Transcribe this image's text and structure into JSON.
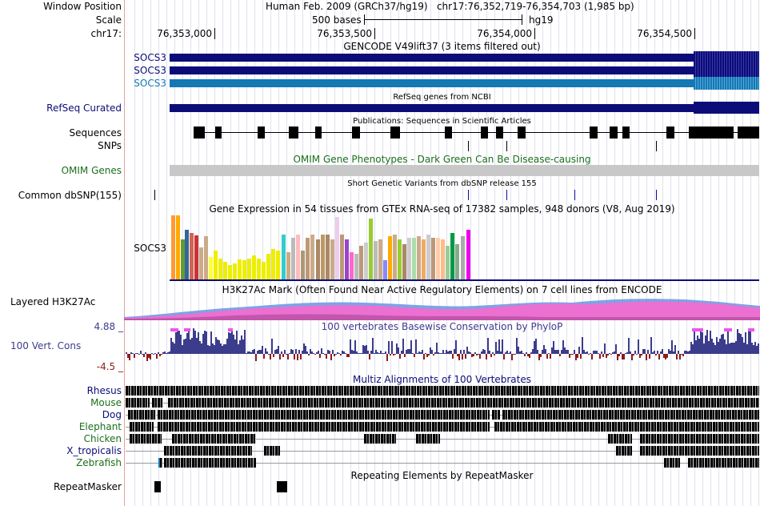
{
  "header": {
    "window_position_label": "Window Position",
    "scale_label": "Scale",
    "chrom_label": "chr17:",
    "position_text": "Human Feb. 2009 (GRCh37/hg19)   chr17:76,352,719-76,354,703 (1,985 bp)",
    "scale_text": "500 bases",
    "assembly": "hg19",
    "ruler_ticks": [
      "76,353,000",
      "76,353,500",
      "76,354,000",
      "76,354,500"
    ]
  },
  "tracks": {
    "gencode": {
      "title": "GENCODE V49lift37 (3 items filtered out)",
      "items": [
        "SOCS3",
        "SOCS3",
        "SOCS3"
      ],
      "colors": [
        "#0c0c78",
        "#0c0c78",
        "#1478b4"
      ]
    },
    "refseq": {
      "label": "RefSeq Curated",
      "title": "RefSeq genes from NCBI",
      "color": "#0c0c78"
    },
    "publications": {
      "label": "Sequences",
      "title": "Publications: Sequences in Scientific Articles"
    },
    "snps": {
      "label": "SNPs"
    },
    "omim": {
      "label": "OMIM Genes",
      "title": "OMIM Gene Phenotypes - Dark Green Can Be Disease-causing",
      "color": "#1c6e1c"
    },
    "dbsnp": {
      "label": "Common dbSNP(155)",
      "title": "Short Genetic Variants from dbSNP release 155"
    },
    "gtex": {
      "title": "Gene Expression in 54 tissues from GTEx RNA-seq of 17382 samples, 948 donors (V8, Aug 2019)",
      "gene": "SOCS3"
    },
    "h3k27ac": {
      "label": "Layered H3K27Ac",
      "title": "H3K27Ac Mark (Often Found Near Active Regulatory Elements) on 7 cell lines from ENCODE"
    },
    "conservation": {
      "label": "100 Vert. Cons",
      "title": "100 vertebrates Basewise Conservation by PhyloP",
      "max": "4.88 _",
      "min": "-4.5 _",
      "color": "#3c3c8c"
    },
    "multiz": {
      "title": "Multiz Alignments of 100 Vertebrates",
      "species": [
        {
          "name": "Rhesus",
          "color": "#0c0c78"
        },
        {
          "name": "Mouse",
          "color": "#1c6e1c"
        },
        {
          "name": "Dog",
          "color": "#0c0c78"
        },
        {
          "name": "Elephant",
          "color": "#1c6e1c"
        },
        {
          "name": "Chicken",
          "color": "#1c6e1c"
        },
        {
          "name": "X_tropicalis",
          "color": "#0c0c78"
        },
        {
          "name": "Zebrafish",
          "color": "#1c6e1c"
        }
      ]
    },
    "repeatmasker": {
      "label": "RepeatMasker",
      "title": "Repeating Elements by RepeatMasker"
    }
  }
}
